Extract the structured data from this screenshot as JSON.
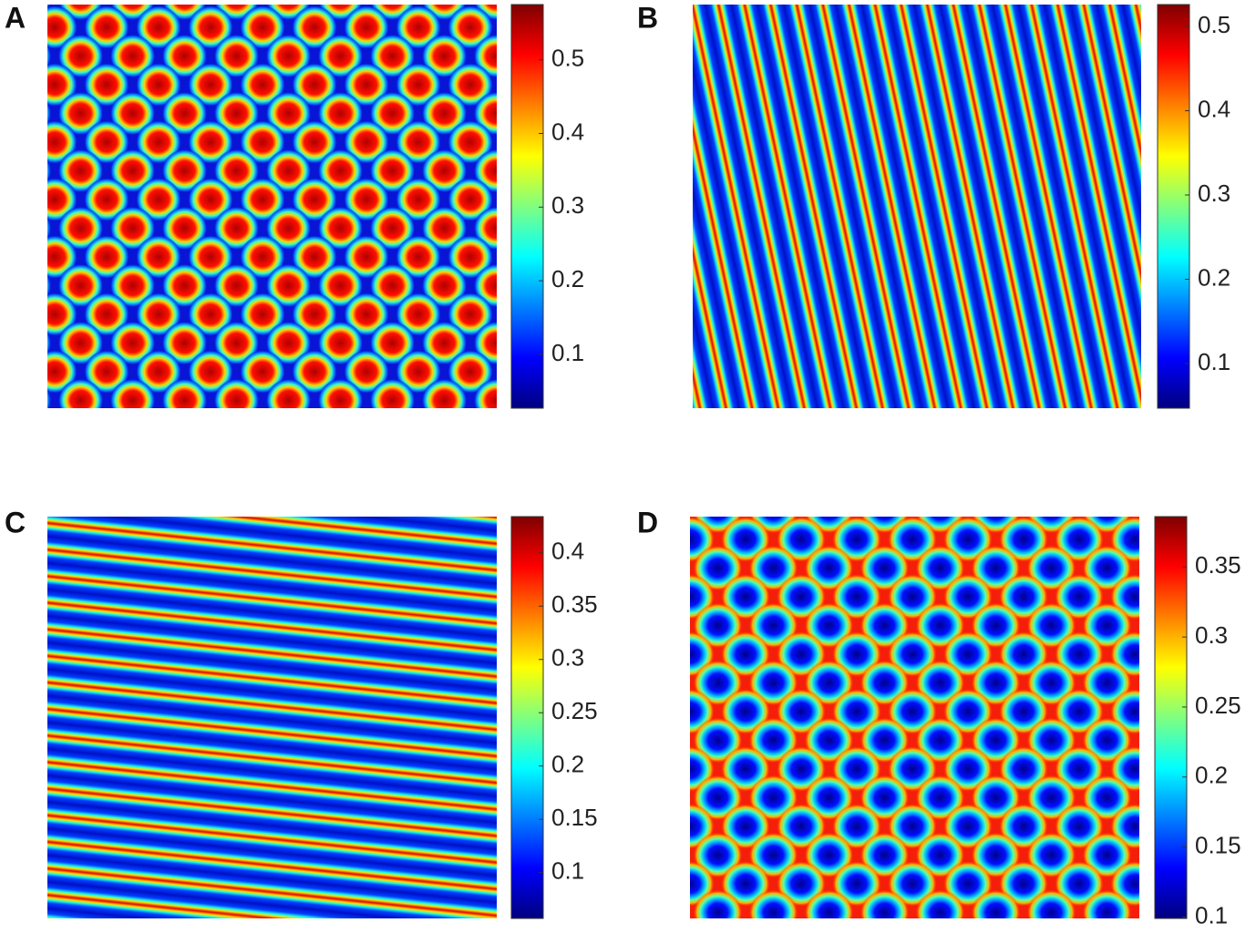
{
  "chart_data": [
    {
      "type": "heatmap",
      "label": "A",
      "colormap": "jet",
      "clim": [
        0.027,
        0.575
      ],
      "cticks": [
        0.1,
        0.2,
        0.3,
        0.4,
        0.5
      ]
    },
    {
      "type": "heatmap",
      "label": "B",
      "colormap": "jet",
      "clim": [
        0.047,
        0.526
      ],
      "cticks": [
        0.1,
        0.2,
        0.3,
        0.4,
        0.5
      ]
    },
    {
      "type": "heatmap",
      "label": "C",
      "colormap": "jet",
      "clim": [
        0.057,
        0.434
      ],
      "cticks": [
        0.1,
        0.15,
        0.2,
        0.25,
        0.3,
        0.35,
        0.4
      ]
    },
    {
      "type": "heatmap",
      "label": "D",
      "colormap": "jet",
      "clim": [
        0.099,
        0.386
      ],
      "cticks": [
        0.1,
        0.15,
        0.2,
        0.25,
        0.3,
        0.35
      ]
    }
  ]
}
